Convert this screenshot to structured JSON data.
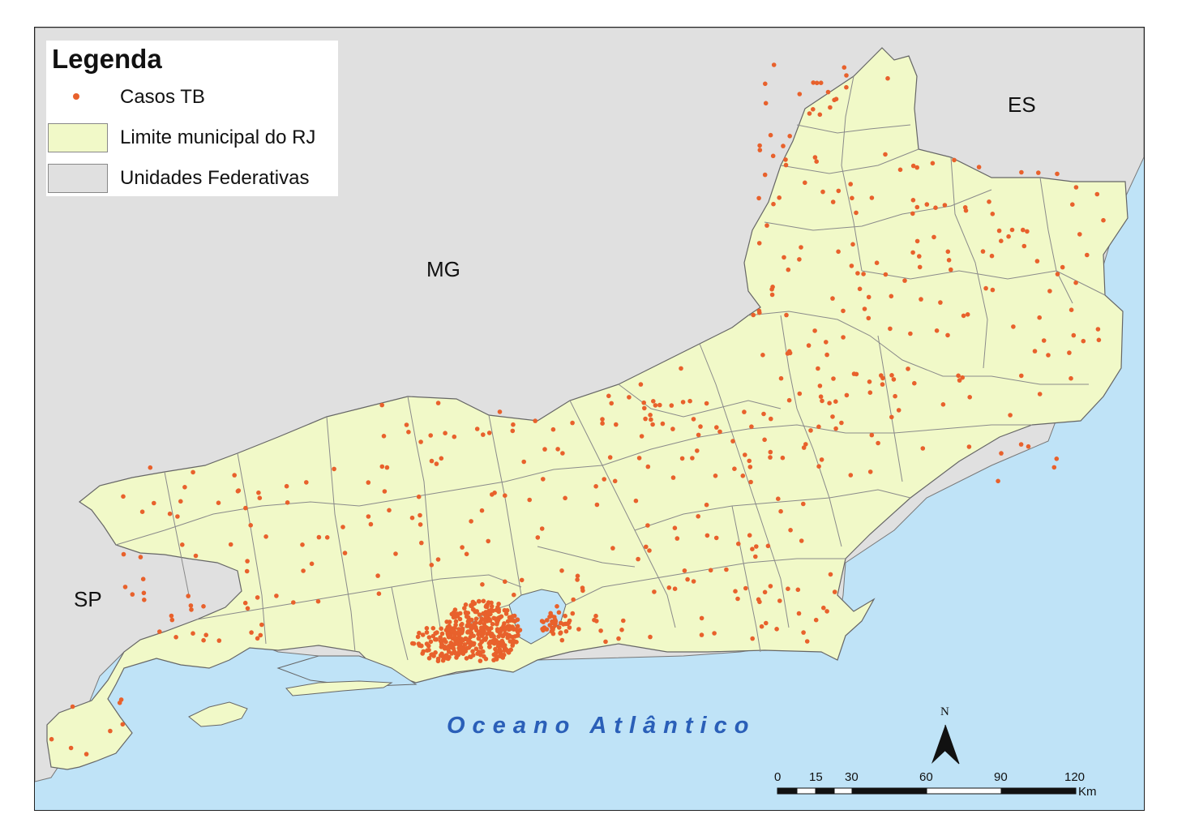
{
  "legend": {
    "title": "Legenda",
    "items": [
      {
        "label": "Casos TB",
        "symbol": "point",
        "color": "#e8612c"
      },
      {
        "label": "Limite municipal do RJ",
        "symbol": "polygon",
        "color": "#f1f9c8"
      },
      {
        "label": "Unidades Federativas",
        "symbol": "polygon",
        "color": "#e0e0e0"
      }
    ]
  },
  "labels": {
    "states": [
      "MG",
      "ES",
      "SP"
    ],
    "ocean": "Oceano Atlântico"
  },
  "north_arrow": {
    "letter": "N"
  },
  "scale_bar": {
    "ticks": [
      "0",
      "15",
      "30",
      "60",
      "90",
      "120"
    ],
    "unit": "Km"
  },
  "colors": {
    "ocean": "#bfe3f7",
    "neighbor_states": "#e0e0e0",
    "rj_fill": "#f1f9c8",
    "case_points": "#e8612c",
    "ocean_label": "#2a5fb8"
  }
}
